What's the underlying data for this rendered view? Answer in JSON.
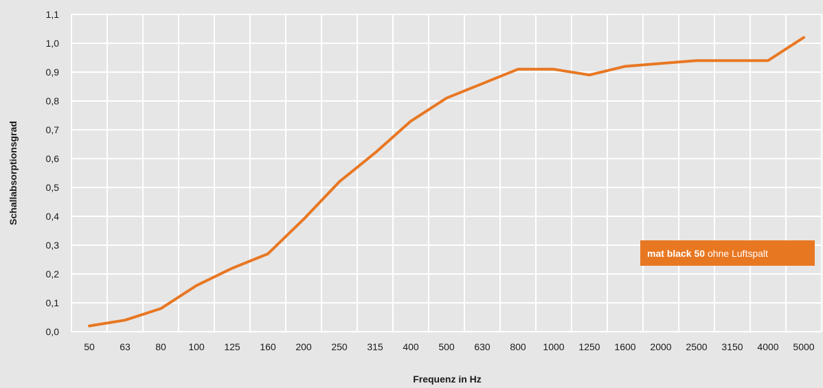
{
  "colors": {
    "background": "#e6e6e6",
    "grid": "#ffffff",
    "line": "#e87722",
    "legend_bg": "#e87722",
    "text": "#1a1a1a"
  },
  "chart_data": {
    "type": "line",
    "title": "",
    "xlabel": "Frequenz in Hz",
    "ylabel": "Schallabsorptionsgrad",
    "categories": [
      "50",
      "63",
      "80",
      "100",
      "125",
      "160",
      "200",
      "250",
      "315",
      "400",
      "500",
      "630",
      "800",
      "1000",
      "1250",
      "1600",
      "2000",
      "2500",
      "3150",
      "4000",
      "5000"
    ],
    "y_tick_labels": [
      "0,0",
      "0,1",
      "0,2",
      "0,3",
      "0,4",
      "0,5",
      "0,6",
      "0,7",
      "0,8",
      "0,9",
      "1,0",
      "1,1"
    ],
    "ylim": [
      0,
      1.1
    ],
    "grid": true,
    "legend_position": "right",
    "series": [
      {
        "name": "mat black 50 ohne Luftspalt",
        "color": "#e87722",
        "values": [
          0.02,
          0.04,
          0.08,
          0.16,
          0.22,
          0.27,
          0.39,
          0.52,
          0.62,
          0.73,
          0.81,
          0.86,
          0.91,
          0.91,
          0.89,
          0.92,
          0.93,
          0.94,
          0.94,
          0.94,
          1.02
        ]
      }
    ],
    "legend": {
      "bold_part": "mat black 50",
      "normal_part": " ohne Luftspalt"
    }
  }
}
